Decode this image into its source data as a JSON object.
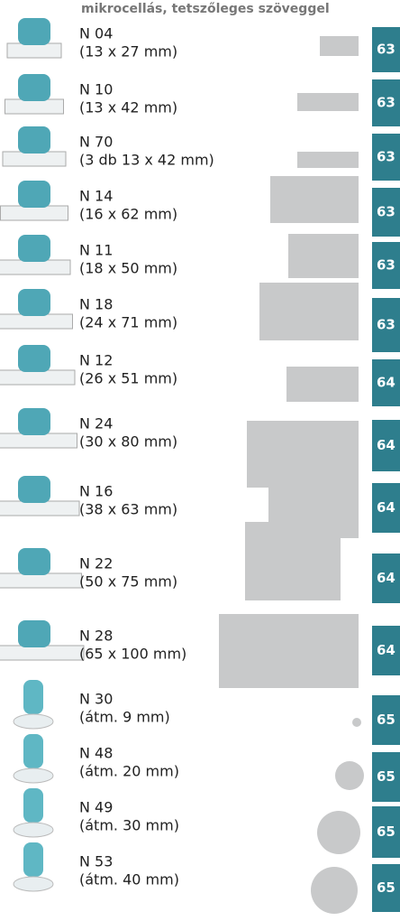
{
  "header": {
    "title": "mikrocellás, tetszőleges szöveggel"
  },
  "items": [
    {
      "name": "N 04",
      "size": "(13 x 27 mm)",
      "page": "63"
    },
    {
      "name": "N 10",
      "size": "(13 x 42 mm)",
      "page": "63"
    },
    {
      "name": "N 70",
      "size": "(3 db 13 x 42 mm)",
      "page": "63"
    },
    {
      "name": "N 14",
      "size": "(16 x 62 mm)",
      "page": "63"
    },
    {
      "name": "N 11",
      "size": "(18 x 50 mm)",
      "page": "63"
    },
    {
      "name": "N 18",
      "size": "(24 x 71 mm)",
      "page": "63"
    },
    {
      "name": "N 12",
      "size": "(26 x 51 mm)",
      "page": "64"
    },
    {
      "name": "N 24",
      "size": "(30 x 80 mm)",
      "page": "64"
    },
    {
      "name": "N 16",
      "size": "(38 x 63 mm)",
      "page": "64"
    },
    {
      "name": "N 22",
      "size": "(50 x 75 mm)",
      "page": "64"
    },
    {
      "name": "N 28",
      "size": "(65 x 100 mm)",
      "page": "64"
    },
    {
      "name": "N 30",
      "size": "(átm. 9 mm)",
      "page": "65"
    },
    {
      "name": "N 48",
      "size": "(átm. 20 mm)",
      "page": "65"
    },
    {
      "name": "N 49",
      "size": "(átm. 30 mm)",
      "page": "65"
    },
    {
      "name": "N 53",
      "size": "(átm. 40 mm)",
      "page": "65"
    }
  ]
}
